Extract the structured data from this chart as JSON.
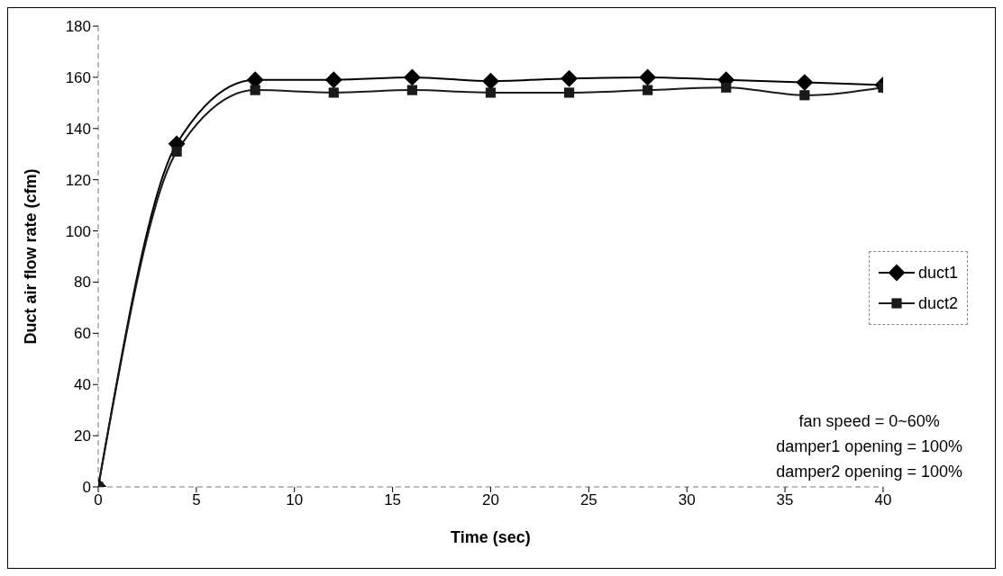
{
  "chart_data": {
    "type": "line",
    "xlabel": "Time (sec)",
    "ylabel": "Duct air flow rate (cfm)",
    "x": [
      0,
      4,
      8,
      12,
      16,
      20,
      24,
      28,
      32,
      36,
      40
    ],
    "series": [
      {
        "name": "duct1",
        "color": "#000000",
        "marker": "diamond",
        "values": [
          0,
          134,
          159,
          159,
          160,
          158.5,
          159.5,
          160,
          159,
          158,
          157
        ]
      },
      {
        "name": "duct2",
        "color": "#1a1a1a",
        "marker": "square",
        "values": [
          0,
          131,
          155,
          154,
          155,
          154,
          154,
          155,
          156,
          153,
          156
        ]
      }
    ],
    "xlim": [
      0,
      40
    ],
    "xticks": [
      0,
      5,
      10,
      15,
      20,
      25,
      30,
      35,
      40
    ],
    "ylim": [
      0,
      180
    ],
    "yticks": [
      0,
      20,
      40,
      60,
      80,
      100,
      120,
      140,
      160,
      180
    ],
    "grid": false,
    "legend": "right",
    "line_style": "solid",
    "annotations": [
      "fan speed = 0~60%",
      "damper1 opening = 100%",
      "damper2 opening = 100%"
    ]
  }
}
